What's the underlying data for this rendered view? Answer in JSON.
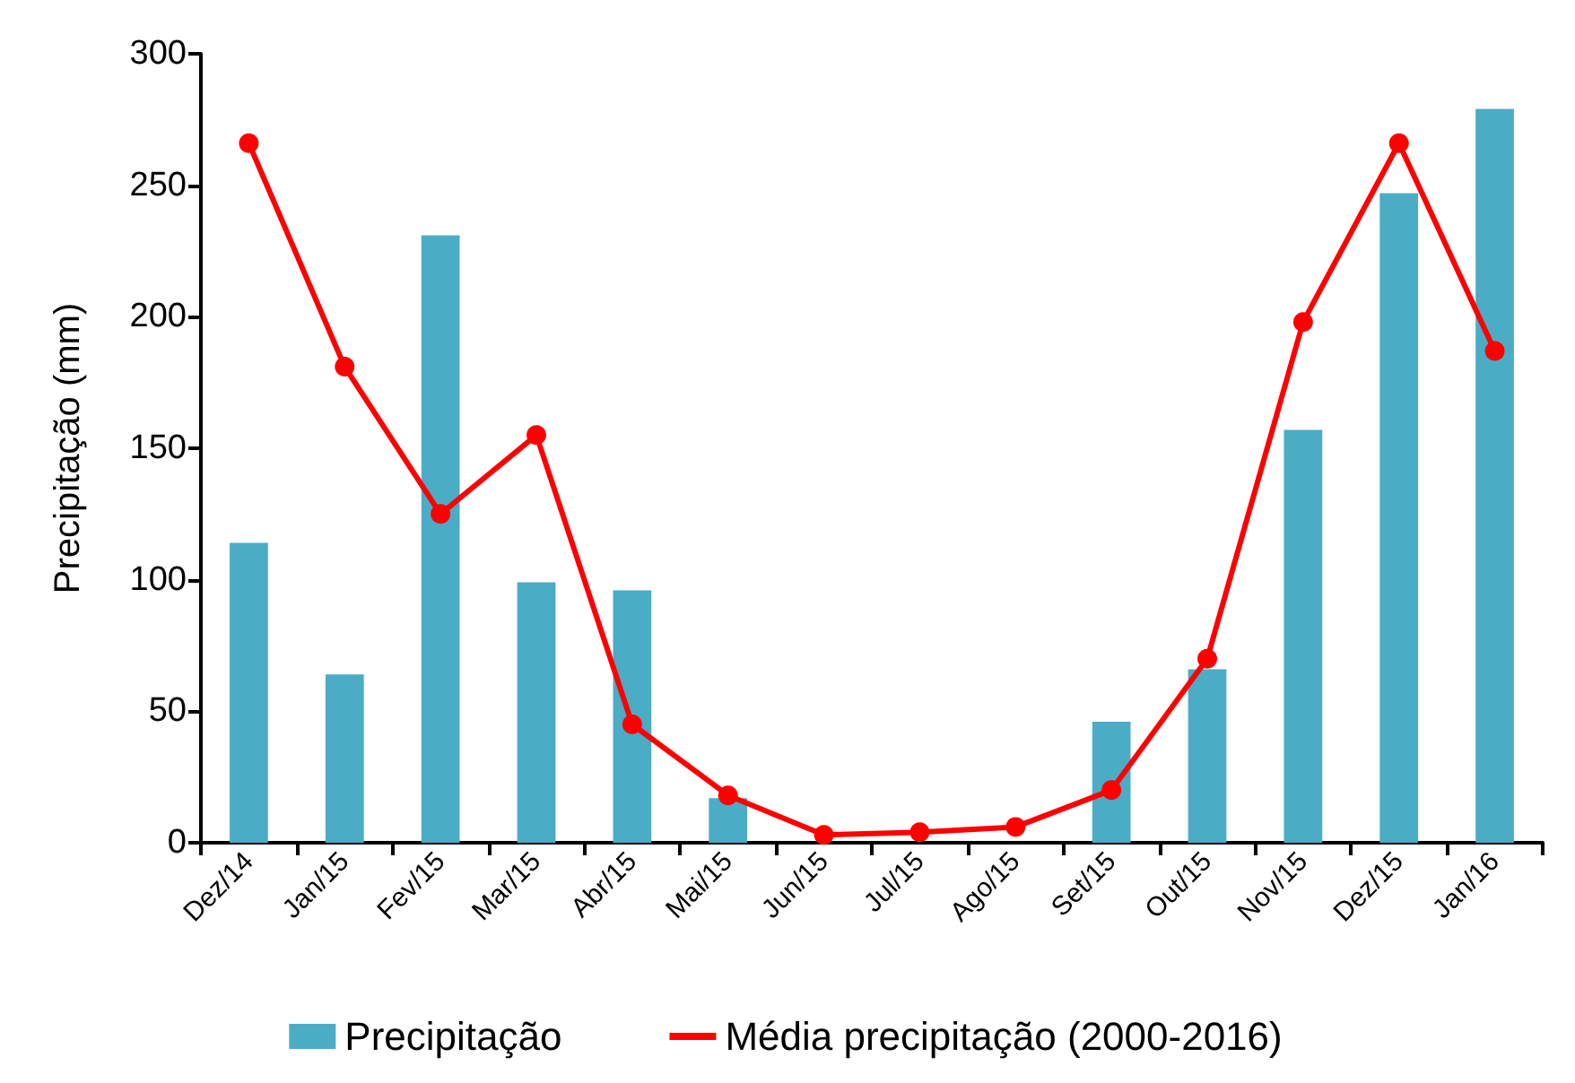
{
  "chart_data": {
    "type": "bar",
    "ylabel": "Precipitação (mm)",
    "categories": [
      "Dez/14",
      "Jan/15",
      "Fev/15",
      "Mar/15",
      "Abr/15",
      "Mai/15",
      "Jun/15",
      "Jul/15",
      "Ago/15",
      "Set/15",
      "Out/15",
      "Nov/15",
      "Dez/15",
      "Jan/16"
    ],
    "series": [
      {
        "name": "Precipitação",
        "color": "#4bacc6",
        "values": [
          114,
          64,
          231,
          99,
          96,
          17,
          0,
          0,
          0,
          46,
          66,
          157,
          247,
          279
        ]
      },
      {
        "name": "Média precipitação (2000-2016)",
        "type": "line",
        "color": "#ff0000",
        "marker": "circle",
        "line_style": "solid",
        "values": [
          266,
          181,
          125,
          155,
          45,
          18,
          3,
          4,
          6,
          20,
          70,
          198,
          266,
          187
        ]
      }
    ],
    "ylim": [
      0,
      300
    ],
    "yticks": [
      0,
      50,
      100,
      150,
      200,
      250,
      300
    ],
    "grid": false,
    "legend": "bottom"
  }
}
